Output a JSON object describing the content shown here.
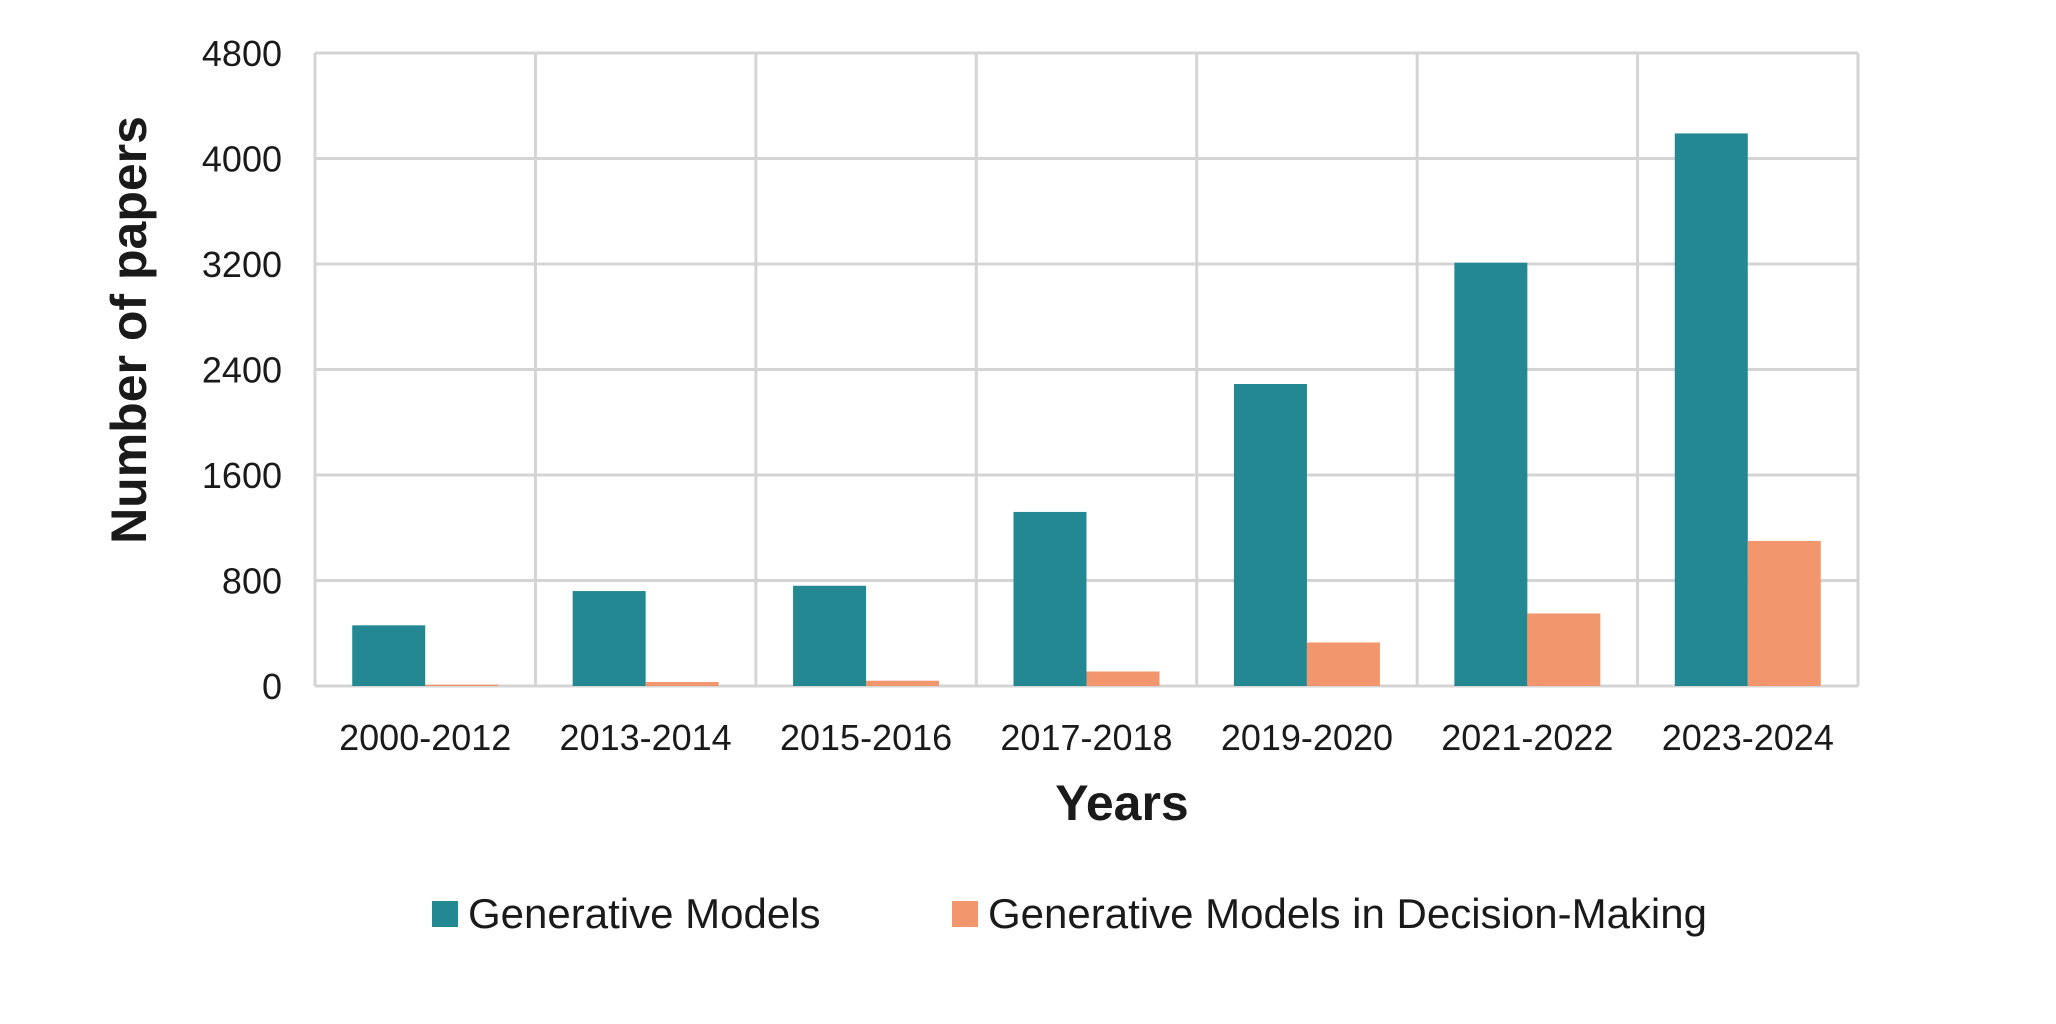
{
  "chart_data": {
    "type": "bar",
    "xlabel": "Years",
    "ylabel": "Number of papers",
    "categories": [
      "2000-2012",
      "2013-2014",
      "2015-2016",
      "2017-2018",
      "2019-2020",
      "2021-2022",
      "2023-2024"
    ],
    "series": [
      {
        "name": "Generative Models",
        "color": "#248893",
        "values": [
          460,
          720,
          760,
          1320,
          2290,
          3210,
          4190
        ]
      },
      {
        "name": "Generative Models in Decision-Making",
        "color": "#f2976d",
        "values": [
          10,
          30,
          40,
          110,
          330,
          550,
          1100
        ]
      }
    ],
    "ylim": [
      0,
      4800
    ],
    "yticks": [
      "0",
      "800",
      "1600",
      "2400",
      "3200",
      "4000",
      "4800"
    ],
    "grid": true,
    "legend_position": "bottom"
  }
}
